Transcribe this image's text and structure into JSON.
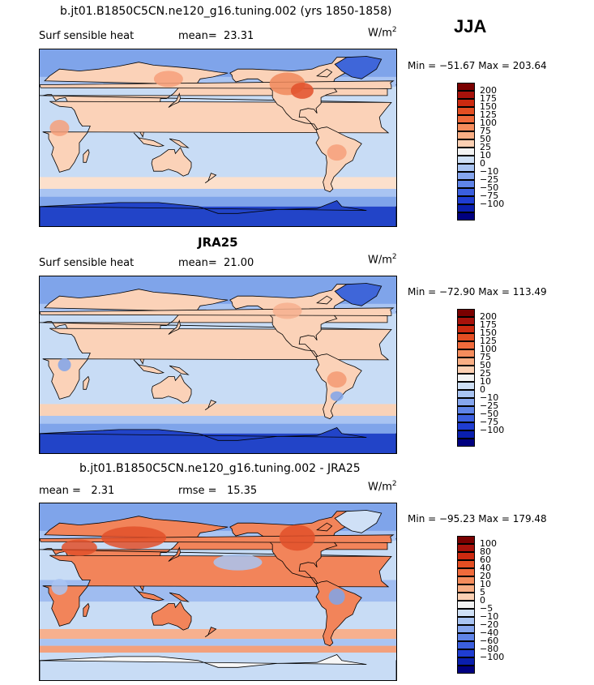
{
  "season": "JJA",
  "units_main": "W/m",
  "units_sup": "2",
  "colors": {
    "ocean_light": "#c8dcf5",
    "ocean_blue": "#7fa4ea",
    "ocean_deep": "#3f66d9",
    "polar": "#2244c8",
    "land_warm": "#fbd2b8",
    "land_hot": "#f08a5c",
    "land_hotter": "#e2502a",
    "coast": "#000000"
  },
  "panels": [
    {
      "id": "model",
      "title": "b.jt01.B1850C5CN.ne120_g16.tuning.002 (yrs 1850-1858)",
      "title_bold": false,
      "left_label": "Surf sensible heat",
      "stat_label": "mean=",
      "stat_value": "23.31",
      "stat2_label": "",
      "stat2_value": "",
      "minmax": "Min = −51.67 Max = 203.64",
      "colorbar": {
        "colors": [
          "#7a0000",
          "#a8120b",
          "#cc2a10",
          "#e44e22",
          "#f06a3b",
          "#f58c5c",
          "#f9ae84",
          "#fcd0b3",
          "#f3f3f3",
          "#cfe0f6",
          "#a9c4f2",
          "#86a6ee",
          "#5f84e8",
          "#3b5fdf",
          "#1f3dd2",
          "#0a1fae",
          "#000080"
        ],
        "labels": [
          "200",
          "175",
          "150",
          "125",
          "100",
          "75",
          "50",
          "25",
          "10",
          "0",
          "−10",
          "−25",
          "−50",
          "−75",
          "−100"
        ]
      },
      "intensity": "model"
    },
    {
      "id": "obs",
      "title": "JRA25",
      "title_bold": true,
      "left_label": "Surf sensible heat",
      "stat_label": "mean=",
      "stat_value": "21.00",
      "stat2_label": "",
      "stat2_value": "",
      "minmax": "Min = −72.90 Max = 113.49",
      "colorbar": {
        "colors": [
          "#7a0000",
          "#a8120b",
          "#cc2a10",
          "#e44e22",
          "#f06a3b",
          "#f58c5c",
          "#f9ae84",
          "#fcd0b3",
          "#f3f3f3",
          "#cfe0f6",
          "#a9c4f2",
          "#86a6ee",
          "#5f84e8",
          "#3b5fdf",
          "#1f3dd2",
          "#0a1fae",
          "#000080"
        ],
        "labels": [
          "200",
          "175",
          "150",
          "125",
          "100",
          "75",
          "50",
          "25",
          "10",
          "0",
          "−10",
          "−25",
          "−50",
          "−75",
          "−100"
        ]
      },
      "intensity": "obs"
    },
    {
      "id": "diff",
      "title": "b.jt01.B1850C5CN.ne120_g16.tuning.002 - JRA25",
      "title_bold": false,
      "left_label": "mean =",
      "stat_label": "",
      "stat_value": "2.31",
      "stat2_label": "rmse =",
      "stat2_value": "15.35",
      "minmax": "Min = −95.23 Max = 179.48",
      "colorbar": {
        "colors": [
          "#7a0000",
          "#a8120b",
          "#cc2a10",
          "#e44e22",
          "#f06a3b",
          "#f58c5c",
          "#f9ae84",
          "#fcd0b3",
          "#f3f3f3",
          "#cfe0f6",
          "#a9c4f2",
          "#86a6ee",
          "#5f84e8",
          "#3b5fdf",
          "#1f3dd2",
          "#0a1fae",
          "#000080"
        ],
        "labels": [
          "100",
          "80",
          "60",
          "40",
          "20",
          "10",
          "5",
          "0",
          "−5",
          "−10",
          "−20",
          "−40",
          "−60",
          "−80",
          "−100"
        ]
      },
      "intensity": "diff"
    }
  ]
}
